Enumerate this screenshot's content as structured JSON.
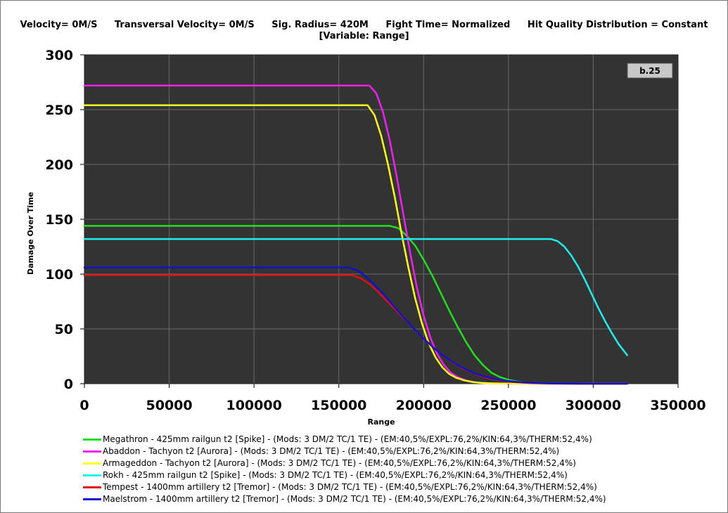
{
  "header": {
    "items": [
      "Velocity= 0M/S",
      "Transversal Velocity= 0M/S",
      "Sig. Radius= 420M",
      "Fight Time= Normalized",
      "Hit Quality Distribution = Constant"
    ],
    "subtitle": "[Variable: Range]"
  },
  "version_box": "b.25",
  "chart_data": {
    "type": "line",
    "xlabel": "Range",
    "ylabel": "Damage Over Time",
    "xlim": [
      0,
      350000
    ],
    "ylim": [
      0,
      300
    ],
    "xticks": [
      "0",
      "50000",
      "100000",
      "150000",
      "200000",
      "250000",
      "300000",
      "350000"
    ],
    "yticks": [
      "0",
      "50",
      "100",
      "150",
      "200",
      "250",
      "300"
    ],
    "grid": true,
    "legend_position": "bottom",
    "series": [
      {
        "name": "Megathron - 425mm railgun t2 [Spike] - (Mods: 3 DM/2 TC/1 TE) - (EM:40,5%/EXPL:76,2%/KIN:64,3%/THERM:52,4%)",
        "color": "#22dd22",
        "x": [
          0,
          180000,
          185000,
          190000,
          195000,
          200000,
          205000,
          210000,
          215000,
          220000,
          225000,
          230000,
          235000,
          240000,
          245000,
          250000,
          255000,
          260000,
          270000,
          280000,
          290000,
          300000,
          320000
        ],
        "y": [
          144,
          144,
          142,
          135,
          126,
          113,
          99,
          83,
          67,
          52,
          38,
          26,
          17,
          10,
          6,
          3.5,
          2,
          1,
          0.4,
          0.1,
          0,
          0,
          0
        ]
      },
      {
        "name": "Abaddon - Tachyon t2 [Aurora] - (Mods: 3 DM/2 TC/1 TE) - (EM:40,5%/EXPL:76,2%/KIN:64,3%/THERM:52,4%)",
        "color": "#ee22ee",
        "x": [
          0,
          168000,
          172000,
          176000,
          180000,
          184000,
          188000,
          192000,
          196000,
          200000,
          204000,
          208000,
          212000,
          216000,
          220000,
          225000,
          230000,
          235000,
          240000,
          250000,
          260000,
          280000,
          320000
        ],
        "y": [
          272,
          272,
          265,
          248,
          222,
          190,
          155,
          120,
          88,
          62,
          42,
          27,
          17,
          10,
          6,
          3,
          1.5,
          0.7,
          0.3,
          0,
          0,
          0,
          0
        ]
      },
      {
        "name": "Armageddon - Tachyon t2 [Aurora] - (Mods: 3 DM/2 TC/1 TE) - (EM:40,5%/EXPL:76,2%/KIN:64,3%/THERM:52,4%)",
        "color": "#ffff22",
        "x": [
          0,
          167000,
          171000,
          175000,
          179000,
          183000,
          187000,
          191000,
          195000,
          199000,
          203000,
          207000,
          211000,
          215000,
          219000,
          224000,
          229000,
          234000,
          240000,
          250000,
          260000,
          280000,
          320000
        ],
        "y": [
          254,
          254,
          245,
          226,
          200,
          170,
          137,
          106,
          78,
          55,
          37,
          24,
          15,
          9,
          5.5,
          3,
          1.5,
          0.7,
          0.3,
          0,
          0,
          0,
          0
        ]
      },
      {
        "name": "Rokh - 425mm railgun t2 [Spike] - (Mods: 3 DM/2 TC/1 TE) - (EM:40,5%/EXPL:76,2%/KIN:64,3%/THERM:52,4%)",
        "color": "#22eeee",
        "x": [
          0,
          275000,
          279000,
          283000,
          287000,
          291000,
          295000,
          299000,
          303000,
          307000,
          311000,
          315000,
          320000
        ],
        "y": [
          132,
          132,
          130,
          125,
          117,
          107,
          95,
          82,
          69,
          57,
          46,
          36,
          26
        ]
      },
      {
        "name": "Tempest - 1400mm artillery t2 [Tremor] - (Mods: 3 DM/2 TC/1 TE) - (EM:40,5%/EXPL:76,2%/KIN:64,3%/THERM:52,4%)",
        "color": "#dd1111",
        "x": [
          0,
          158000,
          163000,
          168000,
          173000,
          178000,
          183000,
          188000,
          193000,
          198000,
          203000,
          208000,
          213000,
          218000,
          223000,
          228000,
          233000,
          238000,
          243000,
          248000,
          253000,
          258000,
          265000,
          275000,
          290000,
          320000
        ],
        "y": [
          99,
          99,
          96,
          91,
          84,
          76,
          68,
          60,
          52,
          44,
          37,
          30,
          24,
          18.5,
          14,
          10.5,
          7.5,
          5.2,
          3.6,
          2.4,
          1.5,
          1,
          0.5,
          0.2,
          0,
          0
        ]
      },
      {
        "name": "Maelstrom - 1400mm artillery t2 [Tremor] - (Mods: 3 DM/2 TC/1 TE) - (EM:40,5%/EXPL:76,2%/KIN:64,3%/THERM:52,4%)",
        "color": "#1111cc",
        "x": [
          0,
          155000,
          160000,
          165000,
          170000,
          175000,
          180000,
          185000,
          190000,
          195000,
          200000,
          205000,
          210000,
          215000,
          220000,
          225000,
          230000,
          235000,
          240000,
          245000,
          250000,
          255000,
          260000,
          270000,
          280000,
          300000,
          320000
        ],
        "y": [
          106,
          106,
          104,
          99,
          92,
          84,
          75,
          66,
          57,
          49,
          41,
          34,
          27.5,
          22,
          17,
          13,
          9.5,
          7,
          5,
          3.5,
          2.4,
          1.6,
          1.1,
          0.5,
          0.2,
          0,
          0
        ]
      }
    ]
  }
}
